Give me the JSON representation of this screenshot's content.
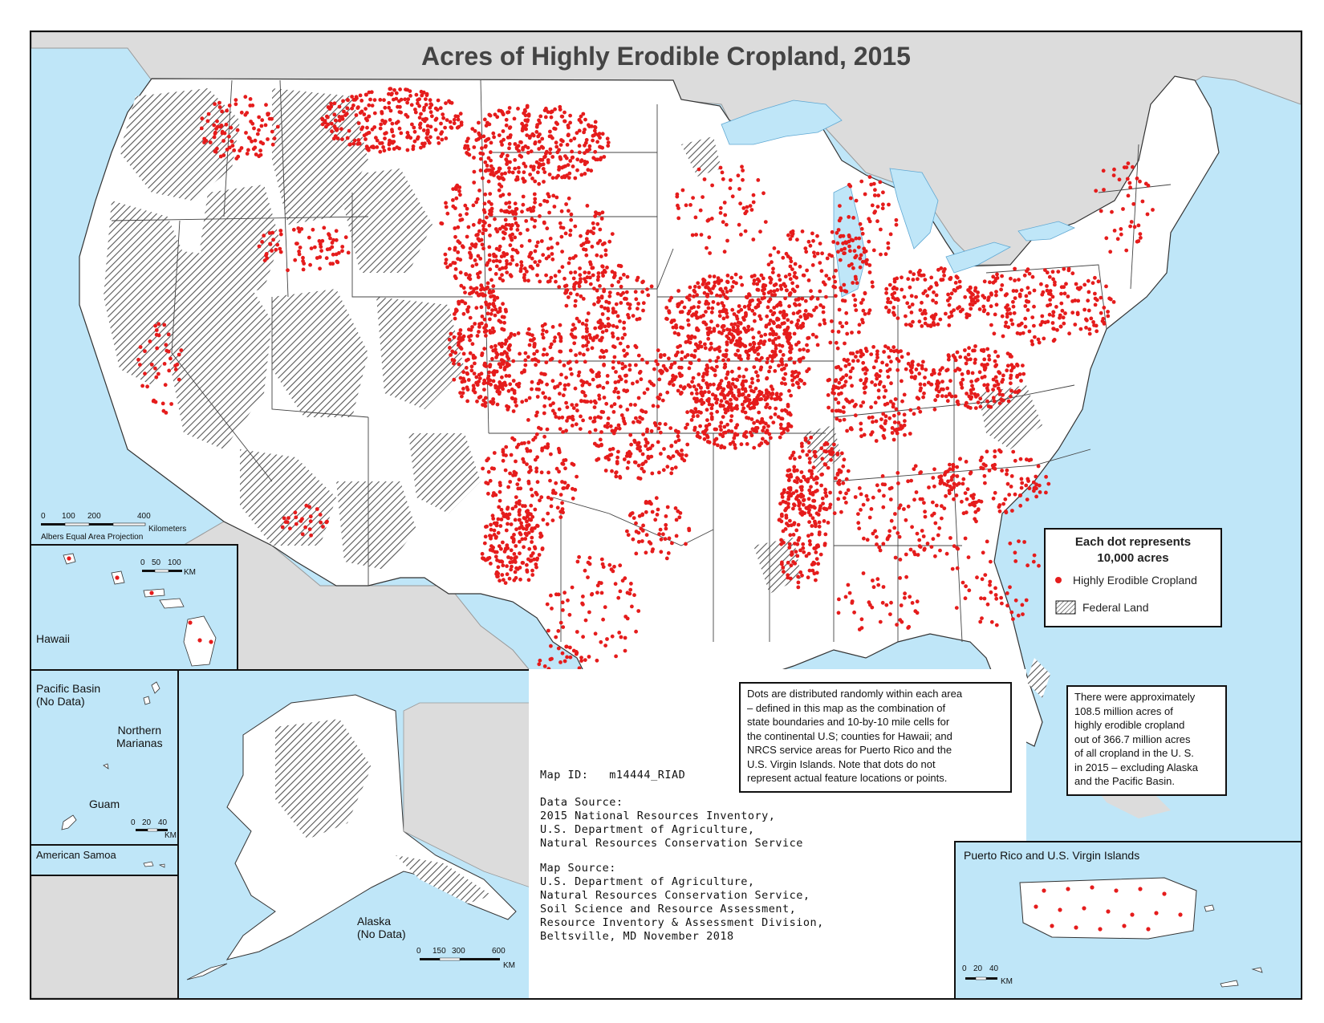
{
  "title": "Acres of Highly Erodible Cropland, 2015",
  "colors": {
    "ocean": "#bfe6f8",
    "land": "#ffffff",
    "foreign_land": "#dcdcdc",
    "federal_hatch": "#555555",
    "dot": "#e51c1c",
    "border": "#111111"
  },
  "legend": {
    "heading_line1": "Each dot represents",
    "heading_line2": "10,000 acres",
    "items": [
      {
        "label": "Highly Erodible Cropland",
        "symbol": "red-dot"
      },
      {
        "label": "Federal Land",
        "symbol": "hatched-box"
      }
    ]
  },
  "main_scale": {
    "ticks": [
      "0",
      "100",
      "200",
      "400"
    ],
    "unit": "Kilometers",
    "projection": "Albers Equal Area Projection"
  },
  "insets": {
    "hawaii": {
      "label": "Hawaii",
      "ticks": [
        "0",
        "50",
        "100"
      ],
      "unit": "KM"
    },
    "pacific": {
      "label_line1": "Pacific Basin",
      "label_line2": "(No Data)",
      "northern_marianas_1": "Northern",
      "northern_marianas_2": "Marianas",
      "guam": "Guam",
      "ticks": [
        "0",
        "20",
        "40"
      ],
      "unit": "KM"
    },
    "samoa": {
      "label": "American Samoa"
    },
    "alaska": {
      "label_line1": "Alaska",
      "label_line2": "(No Data)",
      "ticks": [
        "0",
        "150",
        "300",
        "600"
      ],
      "unit": "KM"
    },
    "puerto_rico": {
      "label": "Puerto Rico and U.S. Virgin Islands",
      "ticks": [
        "0",
        "20",
        "40"
      ],
      "unit": "KM"
    }
  },
  "notes": {
    "distribution": [
      "Dots are distributed randomly within each area",
      "– defined in this map as the combination of",
      "state boundaries and 10-by-10 mile cells for",
      "the continental U.S; counties for Hawaii; and",
      "NRCS service areas for Puerto Rico and the",
      "U.S. Virgin Islands.  Note that dots do not",
      "represent actual feature locations or points."
    ],
    "summary": [
      "There were approximately",
      "108.5 million acres of",
      "highly erodible cropland",
      "out of 366.7 million acres",
      "of all cropland in the U. S.",
      "in 2015 – excluding Alaska",
      "and the Pacific Basin."
    ]
  },
  "credits": {
    "map_id_label": "Map ID:",
    "map_id": "m14444_RIAD",
    "data_source_heading": "Data Source:",
    "data_source": [
      "2015 National Resources Inventory,",
      "U.S. Department of Agriculture,",
      "Natural Resources Conservation Service"
    ],
    "map_source_heading": "Map Source:",
    "map_source": [
      "U.S. Department of Agriculture,",
      "Natural Resources Conservation Service,",
      "Soil Science and Resource Assessment,",
      "Resource Inventory & Assessment Division,",
      "Beltsville, MD November 2018"
    ]
  }
}
